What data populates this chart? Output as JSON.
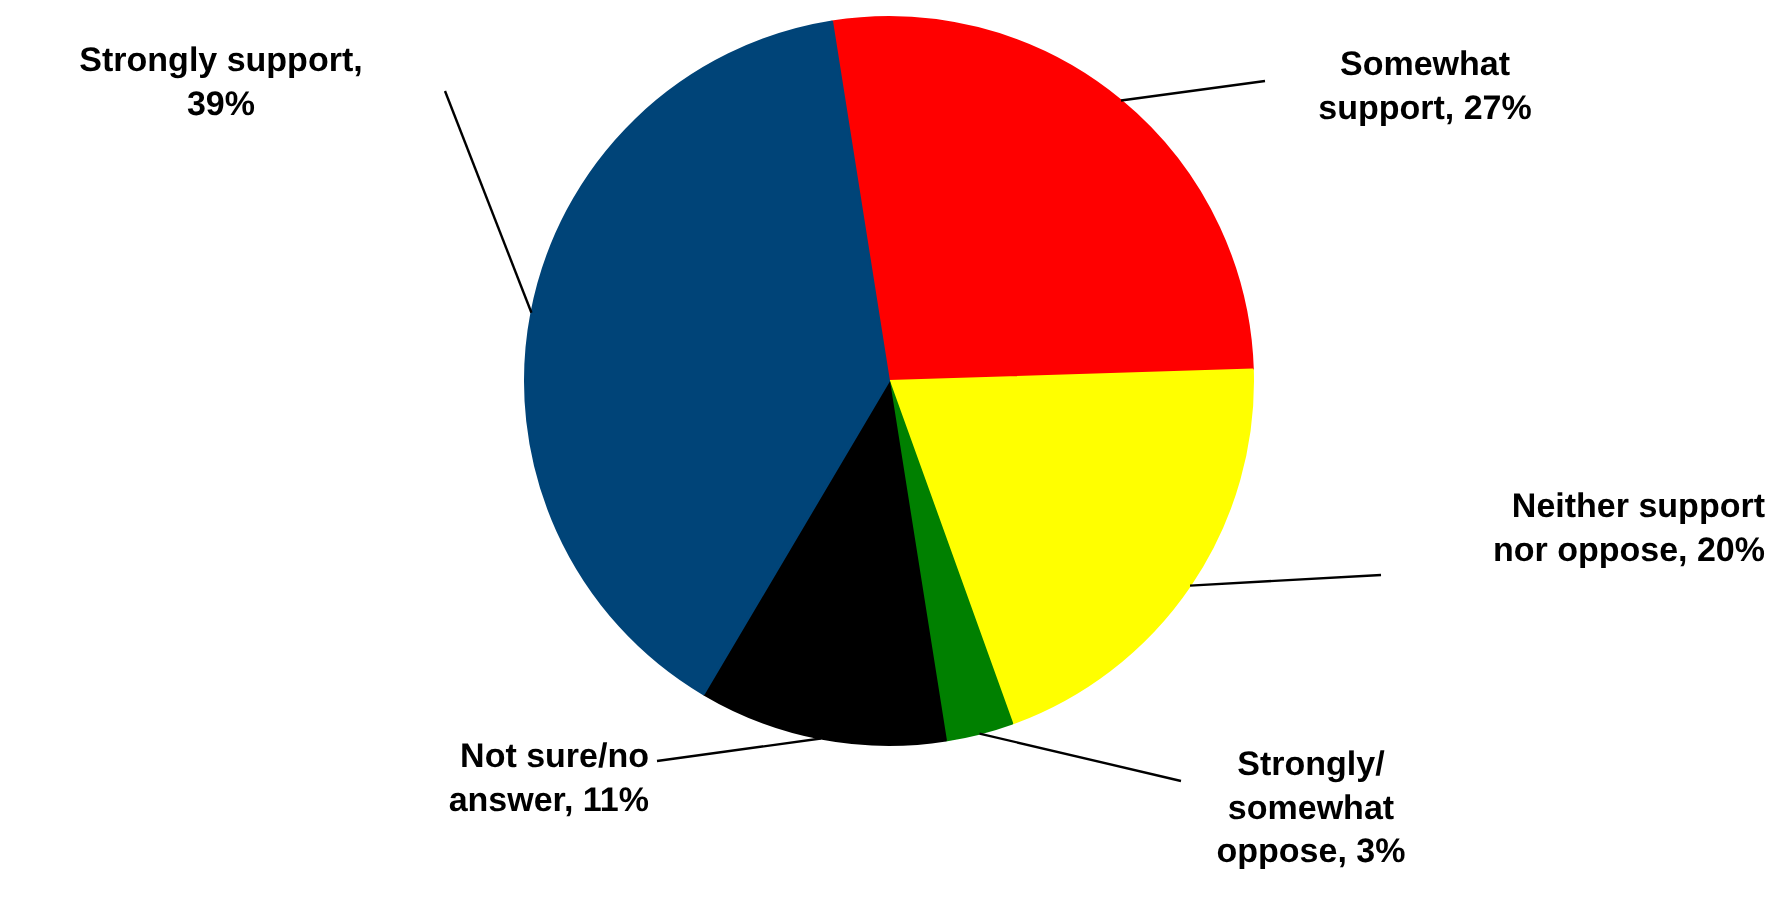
{
  "chart_data": {
    "type": "pie",
    "categories": [
      "Somewhat support, 27%",
      "Neither support nor oppose, 20%",
      "Strongly/somewhat oppose, 3%",
      "Not sure/no answer, 11%",
      "Strongly support, 39%"
    ],
    "values": [
      27,
      20,
      3,
      11,
      39
    ],
    "colors": [
      "#ff0000",
      "#ffff00",
      "#008000",
      "#000000",
      "#004478"
    ]
  }
}
